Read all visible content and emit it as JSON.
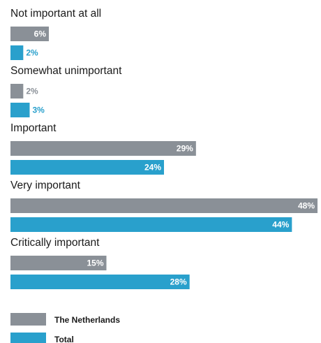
{
  "chart_data": {
    "type": "bar",
    "orientation": "horizontal",
    "categories": [
      "Not important at all",
      "Somewhat unimportant",
      "Important",
      "Very important",
      "Critically important"
    ],
    "series": [
      {
        "name": "The Netherlands",
        "color": "#8a9097",
        "values": [
          6,
          2,
          29,
          48,
          15
        ],
        "labels": [
          "6%",
          "2%",
          "29%",
          "48%",
          "15%"
        ]
      },
      {
        "name": "Total",
        "color": "#29a0cc",
        "values": [
          2,
          3,
          24,
          44,
          28
        ],
        "labels": [
          "2%",
          "3%",
          "24%",
          "44%",
          "28%"
        ]
      }
    ],
    "xlim": [
      0,
      48
    ],
    "legend": "bottom-left",
    "grid": false
  }
}
